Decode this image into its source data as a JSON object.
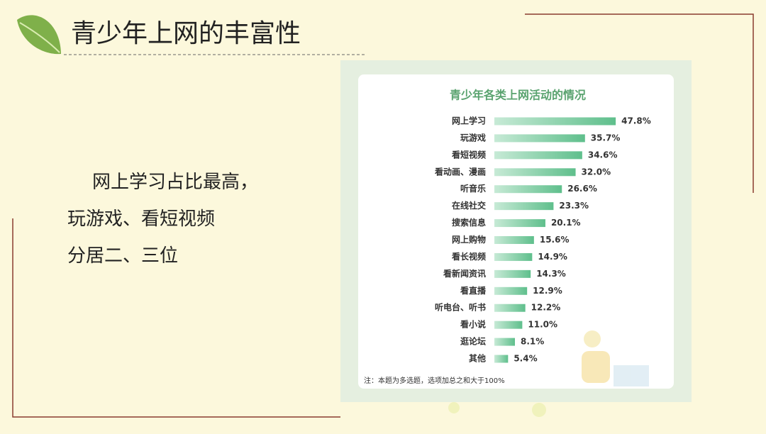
{
  "slide_title": "青少年上网的丰富性",
  "body_lines": [
    "网上学习占比最高，",
    "玩游戏、看短视频",
    "分居二、三位"
  ],
  "chart_data": {
    "type": "bar",
    "orientation": "horizontal",
    "title": "青少年各类上网活动的情况",
    "categories": [
      "网上学习",
      "玩游戏",
      "看短视频",
      "看动画、漫画",
      "听音乐",
      "在线社交",
      "搜索信息",
      "网上购物",
      "看长视频",
      "看新闻资讯",
      "看直播",
      "听电台、听书",
      "看小说",
      "逛论坛",
      "其他"
    ],
    "values": [
      47.8,
      35.7,
      34.6,
      32.0,
      26.6,
      23.3,
      20.1,
      15.6,
      14.9,
      14.3,
      12.9,
      12.2,
      11.0,
      8.1,
      5.4
    ],
    "value_labels": [
      "47.8%",
      "35.7%",
      "34.6%",
      "32.0%",
      "26.6%",
      "23.3%",
      "20.1%",
      "15.6%",
      "14.9%",
      "14.3%",
      "12.9%",
      "12.2%",
      "11.0%",
      "8.1%",
      "5.4%"
    ],
    "color": "#7fcfa6",
    "note": "注：本题为多选题，选项加总之和大于100%"
  }
}
